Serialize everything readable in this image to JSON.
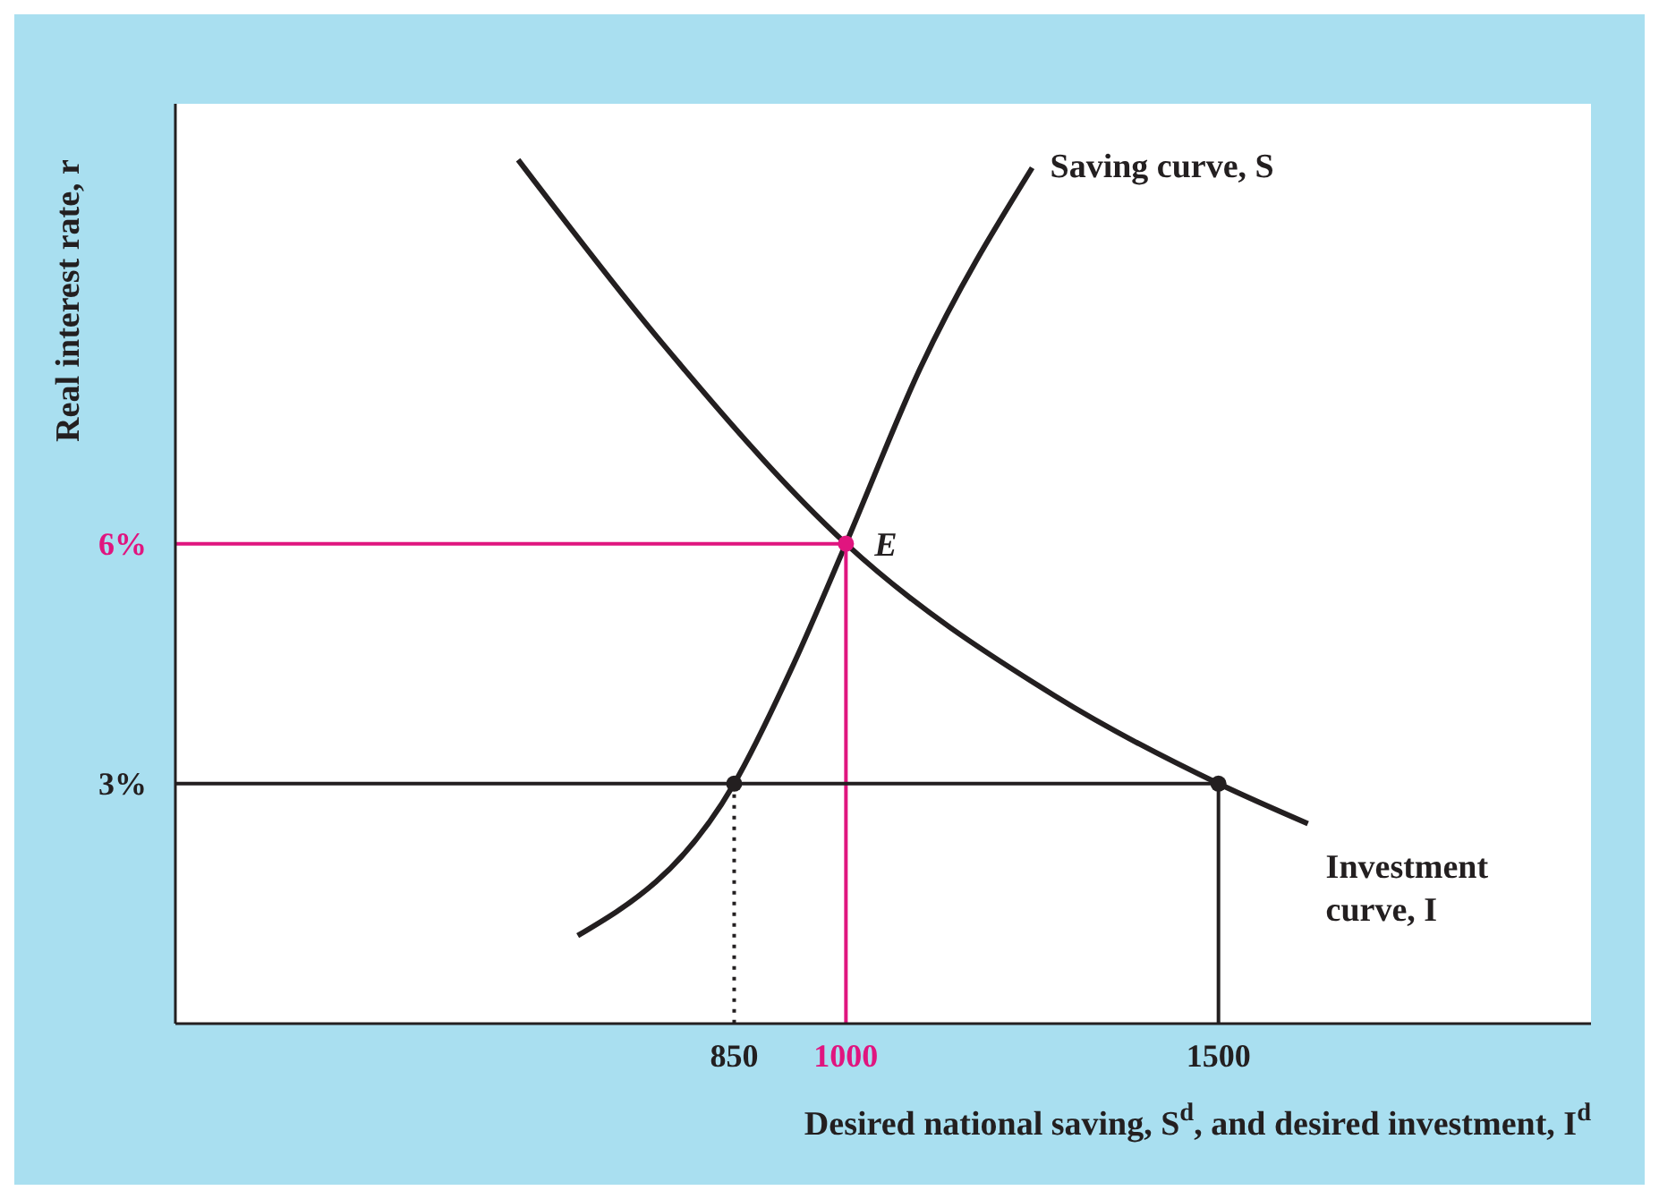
{
  "chart_data": {
    "type": "line",
    "xlabel": "Desired national saving, S$^{d}$, and desired investment, I$^{d}$",
    "ylabel": "Real interest rate, r",
    "xlim": [
      100,
      2000
    ],
    "ylim": [
      0,
      11.5
    ],
    "xticks": [
      850,
      1000,
      1500
    ],
    "yticks": [
      {
        "value": 3,
        "label": "3%"
      },
      {
        "value": 6,
        "label": "6%"
      }
    ],
    "grid": false,
    "legend": false,
    "annotations": [
      {
        "text": "E",
        "x": 1000,
        "y": 6
      }
    ],
    "series": [
      {
        "name": "Saving curve, S",
        "color": "#231f20",
        "x": [
          640,
          850,
          930,
          1000,
          1100,
          1250
        ],
        "values": [
          1.1,
          3,
          4.5,
          6,
          8.2,
          10.7
        ]
      },
      {
        "name": "Investment curve, I",
        "color": "#231f20",
        "x": [
          560,
          754,
          1000,
          1280,
          1500,
          1620
        ],
        "values": [
          10.8,
          8.5,
          6,
          4.1,
          3,
          2.5
        ]
      },
      {
        "color": "#e0157f",
        "x": [
          100,
          1000,
          1000
        ],
        "values": [
          6,
          6,
          0
        ]
      },
      {
        "color": "#231f20",
        "x": [
          100,
          1500,
          1500
        ],
        "values": [
          3,
          3,
          0
        ]
      },
      {
        "color": "#231f20",
        "line_style": "dotted",
        "x": [
          850,
          850
        ],
        "values": [
          3,
          0
        ]
      },
      {
        "type": "scatter",
        "color": "#231f20",
        "marker": "circle",
        "x": [
          850,
          1500
        ],
        "values": [
          3,
          3
        ]
      },
      {
        "type": "scatter",
        "color": "#e0157f",
        "marker": "circle",
        "x": [
          1000
        ],
        "values": [
          6
        ]
      }
    ]
  }
}
